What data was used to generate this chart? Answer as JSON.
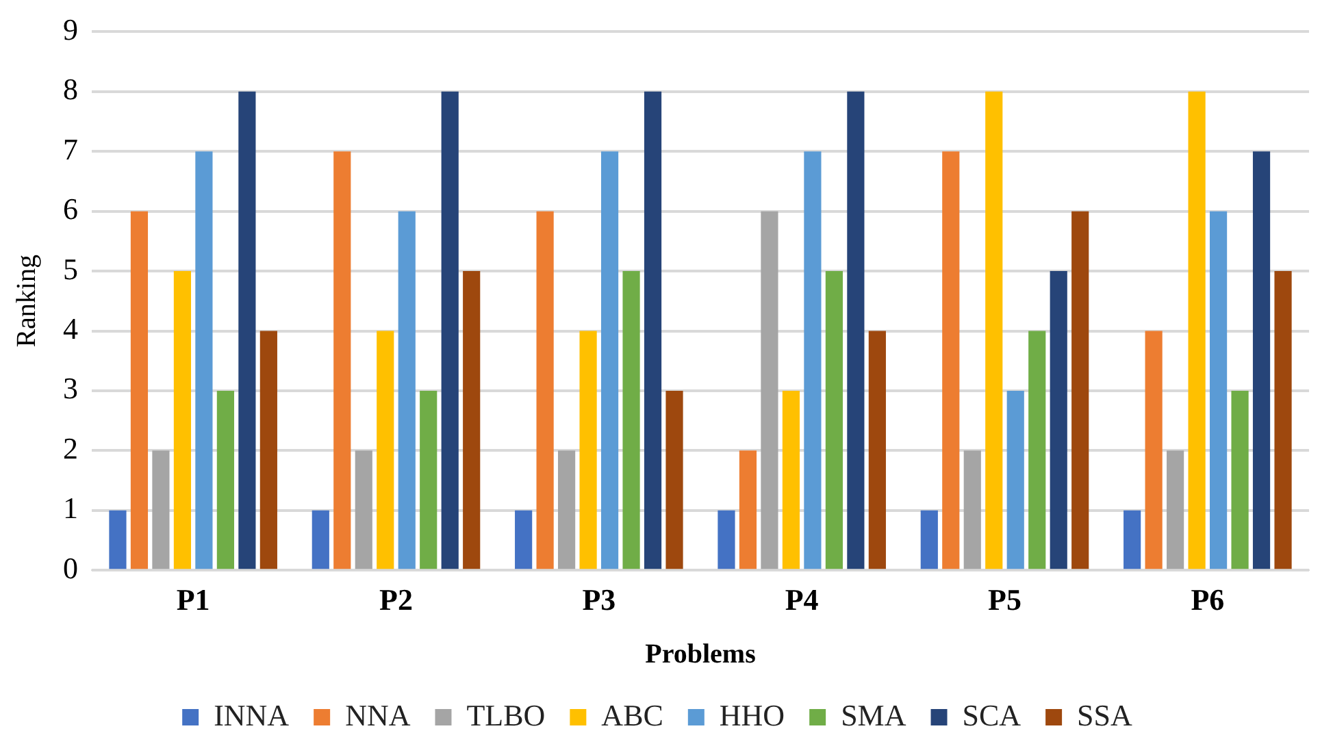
{
  "chart_data": {
    "type": "bar",
    "xlabel": "Problems",
    "ylabel": "Ranking",
    "categories": [
      "P1",
      "P2",
      "P3",
      "P4",
      "P5",
      "P6"
    ],
    "series": [
      {
        "name": "INNA",
        "color": "#4472c4",
        "values": [
          1,
          1,
          1,
          1,
          1,
          1
        ]
      },
      {
        "name": "NNA",
        "color": "#ed7d31",
        "values": [
          6,
          7,
          6,
          2,
          7,
          4
        ]
      },
      {
        "name": "TLBO",
        "color": "#a5a5a5",
        "values": [
          2,
          2,
          2,
          6,
          2,
          2
        ]
      },
      {
        "name": "ABC",
        "color": "#ffc000",
        "values": [
          5,
          4,
          4,
          3,
          8,
          8
        ]
      },
      {
        "name": "HHO",
        "color": "#5b9bd5",
        "values": [
          7,
          6,
          7,
          7,
          3,
          6
        ]
      },
      {
        "name": "SMA",
        "color": "#70ad47",
        "values": [
          3,
          3,
          5,
          5,
          4,
          3
        ]
      },
      {
        "name": "SCA",
        "color": "#264478",
        "values": [
          8,
          8,
          8,
          8,
          5,
          7
        ]
      },
      {
        "name": "SSA",
        "color": "#9e480e",
        "values": [
          4,
          5,
          3,
          4,
          6,
          5
        ]
      }
    ],
    "ylim": [
      0,
      9
    ],
    "yticks": [
      0,
      1,
      2,
      3,
      4,
      5,
      6,
      7,
      8,
      9
    ],
    "grid": "y",
    "legend": "bottom"
  }
}
